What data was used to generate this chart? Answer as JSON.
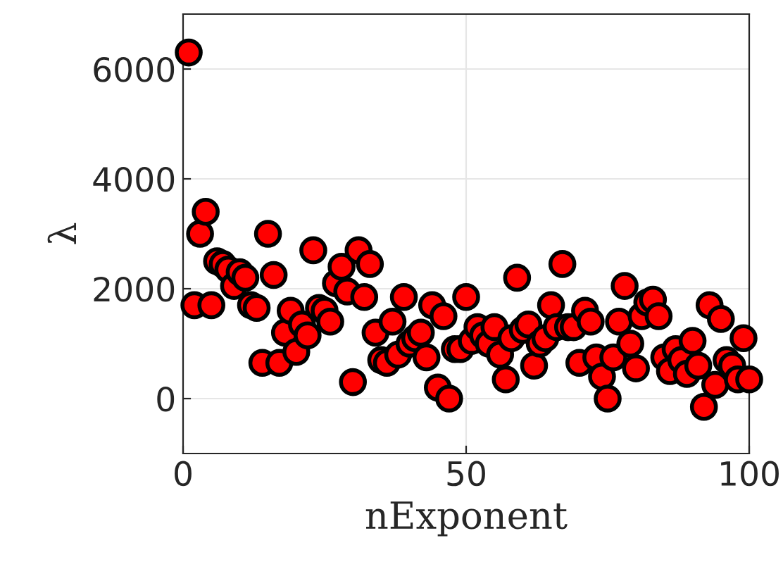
{
  "chart_data": {
    "type": "scatter",
    "xlabel": "nExponent",
    "ylabel": "λ",
    "x": [
      1,
      2,
      3,
      4,
      5,
      6,
      7,
      8,
      9,
      10,
      11,
      12,
      13,
      14,
      15,
      16,
      17,
      18,
      19,
      20,
      21,
      22,
      23,
      24,
      25,
      26,
      27,
      28,
      29,
      30,
      31,
      32,
      33,
      34,
      35,
      36,
      37,
      38,
      39,
      40,
      41,
      42,
      43,
      44,
      45,
      46,
      47,
      48,
      49,
      50,
      51,
      52,
      53,
      54,
      55,
      56,
      57,
      58,
      59,
      60,
      61,
      62,
      63,
      64,
      65,
      66,
      67,
      68,
      69,
      70,
      71,
      72,
      73,
      74,
      75,
      76,
      77,
      78,
      79,
      80,
      81,
      82,
      83,
      84,
      85,
      86,
      87,
      88,
      89,
      90,
      91,
      92,
      93,
      94,
      95,
      96,
      97,
      98,
      99,
      100
    ],
    "series": [
      {
        "color": "#ff0000",
        "values": [
          6300,
          1700,
          3000,
          3400,
          1700,
          2500,
          2450,
          2350,
          2050,
          2300,
          2200,
          1700,
          1650,
          650,
          3000,
          2250,
          650,
          1200,
          1600,
          850,
          1350,
          1150,
          2700,
          1650,
          1600,
          1400,
          2100,
          2400,
          1950,
          300,
          2700,
          1850,
          2450,
          1200,
          700,
          650,
          1400,
          800,
          1850,
          1000,
          1100,
          1200,
          750,
          1700,
          200,
          1500,
          0,
          900,
          900,
          1850,
          1050,
          1300,
          1150,
          1000,
          1300,
          800,
          350,
          1100,
          2200,
          1250,
          1350,
          600,
          1000,
          1100,
          1700,
          1300,
          2450,
          1300,
          1300,
          650,
          1600,
          1400,
          750,
          400,
          0,
          750,
          1400,
          2050,
          1000,
          550,
          1500,
          1750,
          1800,
          1500,
          750,
          500,
          900,
          700,
          450,
          1050,
          600,
          -150,
          1700,
          250,
          1450,
          700,
          600,
          350,
          1100,
          350
        ]
      }
    ],
    "xlim": [
      0,
      100
    ],
    "xticks": [
      0,
      50,
      100
    ],
    "ylim": [
      -1000,
      7000
    ],
    "yticks": [
      0,
      2000,
      4000,
      6000
    ],
    "grid": true,
    "marker": "circle"
  }
}
